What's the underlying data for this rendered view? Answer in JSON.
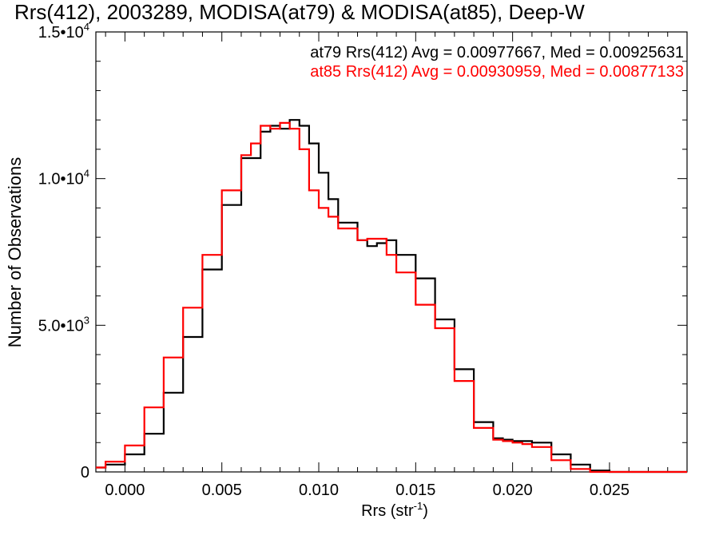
{
  "chart_data": {
    "type": "line",
    "title": "Rrs(412), 2003289, MODISA(at79) & MODISA(at85), Deep-W",
    "xlabel": "Rrs (str",
    "xlabel_sup": "-1",
    "xlabel_close": ")",
    "ylabel": "Number of Observations",
    "xlim": [
      -0.0015,
      0.029
    ],
    "ylim": [
      0,
      15000
    ],
    "x_ticks": [
      {
        "value": 0.0,
        "label": "0.000"
      },
      {
        "value": 0.005,
        "label": "0.005"
      },
      {
        "value": 0.01,
        "label": "0.010"
      },
      {
        "value": 0.015,
        "label": "0.015"
      },
      {
        "value": 0.02,
        "label": "0.020"
      },
      {
        "value": 0.025,
        "label": "0.025"
      }
    ],
    "y_ticks": [
      {
        "value": 0,
        "label": "0",
        "sup": ""
      },
      {
        "value": 5000,
        "label": "5.0•10",
        "sup": "3"
      },
      {
        "value": 10000,
        "label": "1.0•10",
        "sup": "4"
      },
      {
        "value": 15000,
        "label": "1.5•10",
        "sup": "4"
      }
    ],
    "grid": false,
    "legend_position": "top-right",
    "series": [
      {
        "name": "at79",
        "color": "#000000",
        "legend_text": "at79 Rrs(412) Avg = 0.00977667, Med = 0.00925631",
        "x": [
          -0.0015,
          -0.001,
          0.0,
          0.001,
          0.002,
          0.003,
          0.004,
          0.005,
          0.006,
          0.007,
          0.0075,
          0.008,
          0.0085,
          0.009,
          0.0095,
          0.01,
          0.0105,
          0.011,
          0.012,
          0.0125,
          0.013,
          0.0135,
          0.014,
          0.015,
          0.016,
          0.017,
          0.018,
          0.019,
          0.0195,
          0.02,
          0.0205,
          0.021,
          0.022,
          0.023,
          0.024,
          0.025,
          0.029
        ],
        "y": [
          150,
          250,
          600,
          1300,
          2700,
          4600,
          6900,
          9100,
          10700,
          11600,
          11800,
          11700,
          12000,
          11800,
          11200,
          10200,
          9300,
          8500,
          7900,
          7700,
          7800,
          7900,
          7400,
          6600,
          5200,
          3500,
          1700,
          1150,
          1100,
          1050,
          1050,
          1000,
          600,
          250,
          50,
          0,
          0
        ]
      },
      {
        "name": "at85",
        "color": "#ff0000",
        "legend_text": "at85 Rrs(412) Avg = 0.00930959, Med = 0.00877133",
        "x": [
          -0.0015,
          -0.001,
          0.0,
          0.001,
          0.002,
          0.003,
          0.004,
          0.005,
          0.006,
          0.0065,
          0.007,
          0.0075,
          0.008,
          0.0085,
          0.009,
          0.0095,
          0.01,
          0.0105,
          0.011,
          0.012,
          0.0125,
          0.013,
          0.0135,
          0.014,
          0.015,
          0.016,
          0.017,
          0.018,
          0.019,
          0.0195,
          0.02,
          0.0205,
          0.021,
          0.022,
          0.023,
          0.024,
          0.025,
          0.029
        ],
        "y": [
          150,
          350,
          900,
          2200,
          3900,
          5600,
          7400,
          9600,
          10800,
          11200,
          11800,
          11700,
          11900,
          11700,
          11000,
          9600,
          9000,
          8700,
          8300,
          7900,
          7950,
          7950,
          7400,
          6800,
          5700,
          4900,
          3100,
          1500,
          1100,
          1050,
          1000,
          950,
          850,
          400,
          100,
          0,
          0,
          0
        ]
      }
    ]
  }
}
